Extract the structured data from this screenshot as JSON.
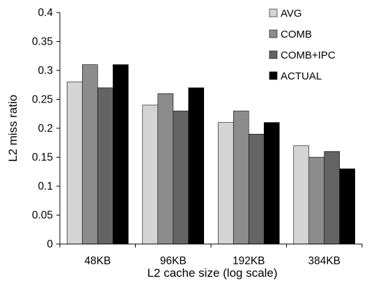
{
  "chart_data": {
    "type": "bar",
    "title": "",
    "xlabel": "L2 cache size  (log scale)",
    "ylabel": "L2 miss ratio",
    "categories": [
      "48KB",
      "96KB",
      "192KB",
      "384KB"
    ],
    "ylim": [
      0,
      0.4
    ],
    "yticks": [
      "0",
      "0.05",
      "0.1",
      "0.15",
      "0.2",
      "0.25",
      "0.3",
      "0.35",
      "0.4"
    ],
    "grid": false,
    "legend_position": "top-right",
    "series": [
      {
        "name": "AVG",
        "color": "#d4d4d4",
        "values": [
          0.28,
          0.24,
          0.21,
          0.17
        ]
      },
      {
        "name": "COMB",
        "color": "#8c8c8c",
        "values": [
          0.31,
          0.26,
          0.23,
          0.15
        ]
      },
      {
        "name": "COMB+IPC",
        "color": "#646464",
        "values": [
          0.27,
          0.23,
          0.19,
          0.16
        ]
      },
      {
        "name": "ACTUAL",
        "color": "#000000",
        "values": [
          0.31,
          0.27,
          0.21,
          0.13
        ]
      }
    ]
  }
}
